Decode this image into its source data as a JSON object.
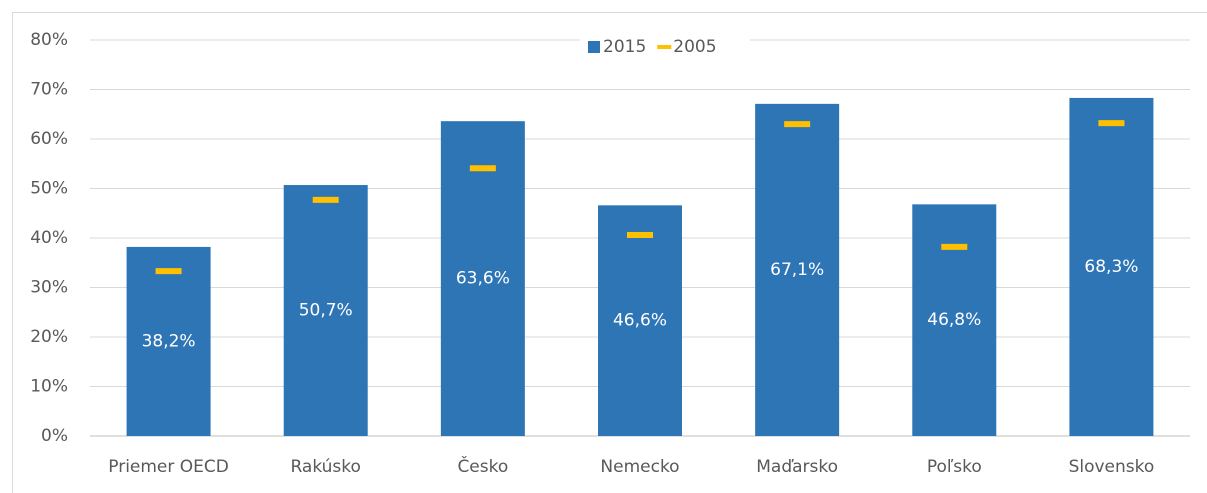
{
  "chart_data": {
    "type": "bar",
    "categories": [
      "Priemer OECD",
      "Rakúsko",
      "Česko",
      "Nemecko",
      "Maďarsko",
      "Poľsko",
      "Slovensko"
    ],
    "series": [
      {
        "name": "2015",
        "color": "#2e75b6",
        "mark": "bar",
        "values": [
          38.2,
          50.7,
          63.6,
          46.6,
          67.1,
          46.8,
          68.3
        ],
        "value_labels": [
          "38,2%",
          "50,7%",
          "63,6%",
          "46,6%",
          "67,1%",
          "46,8%",
          "68,3%"
        ]
      },
      {
        "name": "2005",
        "color": "#ffc000",
        "mark": "dash",
        "values": [
          33.3,
          47.7,
          54.1,
          40.6,
          63.0,
          38.2,
          63.2
        ]
      }
    ],
    "ylim": [
      0,
      80
    ],
    "yticks": [
      {
        "value": 0,
        "label": "0%"
      },
      {
        "value": 10,
        "label": "10%"
      },
      {
        "value": 20,
        "label": "20%"
      },
      {
        "value": 30,
        "label": "30%"
      },
      {
        "value": 40,
        "label": "40%"
      },
      {
        "value": 50,
        "label": "50%"
      },
      {
        "value": 60,
        "label": "60%"
      },
      {
        "value": 70,
        "label": "70%"
      },
      {
        "value": 80,
        "label": "80%"
      }
    ],
    "grid": true,
    "legend": "top"
  }
}
